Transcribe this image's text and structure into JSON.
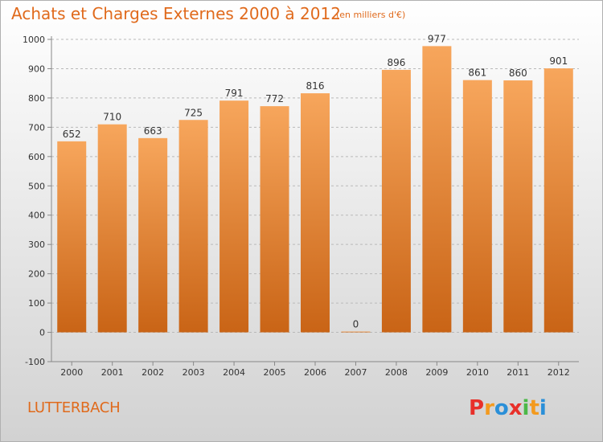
{
  "header": {
    "title": "Achats et Charges Externes 2000 à 2012",
    "unit": "(en milliers d'€)"
  },
  "footer": {
    "location": "LUTTERBACH",
    "logo_text": "Proxiti"
  },
  "colors": {
    "title": "#e06a1c",
    "bar_top": "#f7a65c",
    "bar_bottom": "#c96416",
    "grid": "#b9b9b9"
  },
  "chart_data": {
    "type": "bar",
    "title": "Achats et Charges Externes 2000 à 2012",
    "subtitle": "(en milliers d'€)",
    "xlabel": "",
    "ylabel": "",
    "categories": [
      "2000",
      "2001",
      "2002",
      "2003",
      "2004",
      "2005",
      "2006",
      "2007",
      "2008",
      "2009",
      "2010",
      "2011",
      "2012"
    ],
    "values": [
      652,
      710,
      663,
      725,
      791,
      772,
      816,
      0,
      896,
      977,
      861,
      860,
      901
    ],
    "ylim": [
      -100,
      1000
    ],
    "yticks": [
      -100,
      0,
      100,
      200,
      300,
      400,
      500,
      600,
      700,
      800,
      900,
      1000
    ],
    "grid": true,
    "legend": "none"
  }
}
